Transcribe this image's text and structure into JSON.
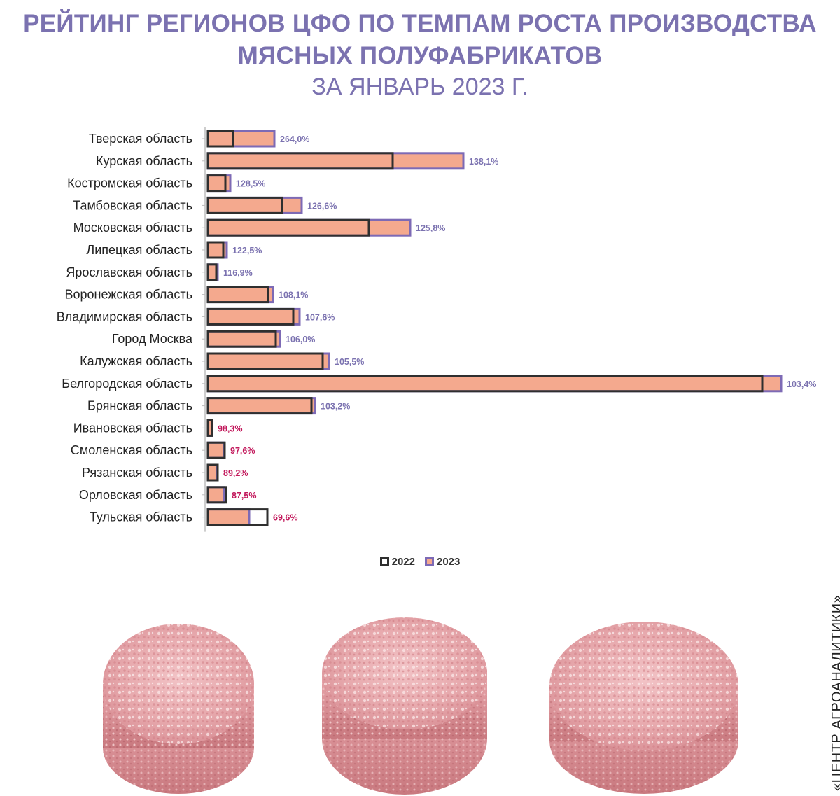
{
  "title": {
    "line1": "РЕЙТИНГ РЕГИОНОВ ЦФО ПО ТЕМПАМ РОСТА ПРОИЗВОДСТВА",
    "line2": "МЯСНЫХ ПОЛУФАБРИКАТОВ",
    "subtitle": "ЗА ЯНВАРЬ 2023 Г."
  },
  "legend": {
    "y2022": "2022",
    "y2023": "2023"
  },
  "source": "«ЦЕНТР АГРОАНАЛИТИКИ»",
  "colors": {
    "title": "#7b72b0",
    "bar_2023_fill": "#f4a98e",
    "bar_2023_border": "#7d6ab5",
    "bar_2022_border": "#2f2f2f",
    "label_growth": "#7b72b0",
    "label_decline": "#c2185b"
  },
  "chart_data": {
    "type": "bar",
    "orientation": "horizontal",
    "categories": [
      "Тверская область",
      "Курская область",
      "Костромская область",
      "Тамбовская область",
      "Московская область",
      "Липецкая область",
      "Ярославская область",
      "Воронежская область",
      "Владимирская область",
      "Город Москва",
      "Калужская область",
      "Белгородская область",
      "Брянская область",
      "Ивановская область",
      "Смоленская область",
      "Рязанская область",
      "Орловская область",
      "Тульская область"
    ],
    "series": [
      {
        "name": "2022",
        "values": [
          3.6,
          26.4,
          2.5,
          10.6,
          23.0,
          2.2,
          1.2,
          8.6,
          12.2,
          9.7,
          16.4,
          79.2,
          14.8,
          0.6,
          2.4,
          1.4,
          2.6,
          8.5
        ]
      },
      {
        "name": "2023",
        "values": [
          9.5,
          36.5,
          3.2,
          13.4,
          28.9,
          2.7,
          1.4,
          9.3,
          13.1,
          10.3,
          17.3,
          81.9,
          15.3,
          0.59,
          2.34,
          1.25,
          2.28,
          5.9
        ]
      }
    ],
    "data_labels": [
      "264,0%",
      "138,1%",
      "128,5%",
      "126,6%",
      "125,8%",
      "122,5%",
      "116,9%",
      "108,1%",
      "107,6%",
      "106,0%",
      "105,5%",
      "103,4%",
      "103,2%",
      "98,3%",
      "97,6%",
      "89,2%",
      "87,5%",
      "69,6%"
    ],
    "title": "",
    "xlabel": "",
    "ylabel": "",
    "xlim": [
      0,
      82
    ],
    "grid": false,
    "legend_position": "bottom"
  }
}
